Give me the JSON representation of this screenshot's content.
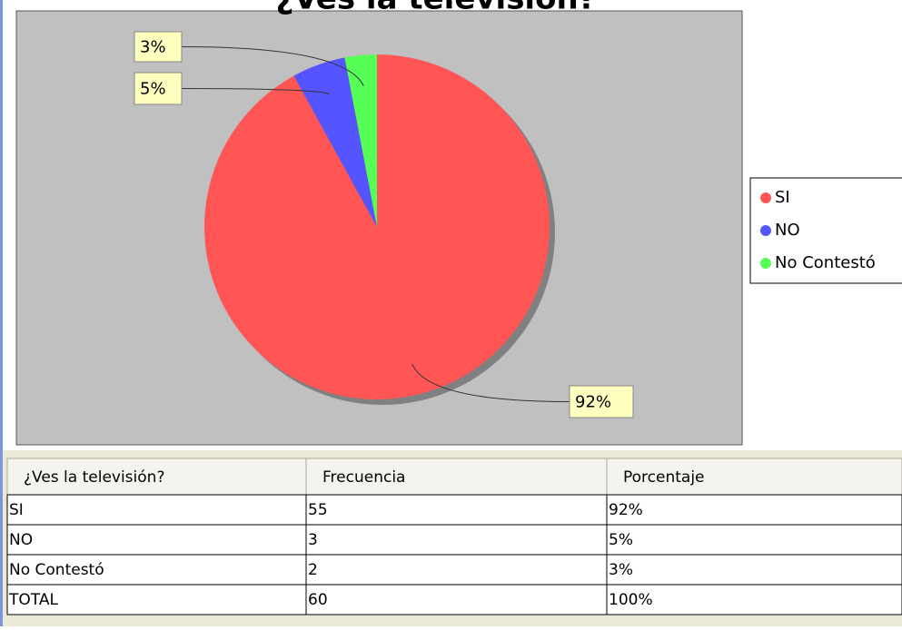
{
  "chart_data": {
    "type": "pie",
    "title": "¿Ves la televisión?",
    "categories": [
      "SI",
      "NO",
      "No Contestó"
    ],
    "values": [
      92,
      5,
      3
    ],
    "value_labels": [
      "92%",
      "5%",
      "3%"
    ],
    "colors": [
      "#ff5555",
      "#5555ff",
      "#55ff55"
    ]
  },
  "table": {
    "header": [
      "¿Ves la televisión?",
      "Frecuencia",
      "Porcentaje"
    ],
    "rows": [
      [
        "SI",
        55,
        "92%"
      ],
      [
        "NO",
        3,
        "5%"
      ],
      [
        "No Contestó",
        2,
        "3%"
      ],
      [
        "TOTAL",
        60,
        "100%"
      ]
    ]
  }
}
